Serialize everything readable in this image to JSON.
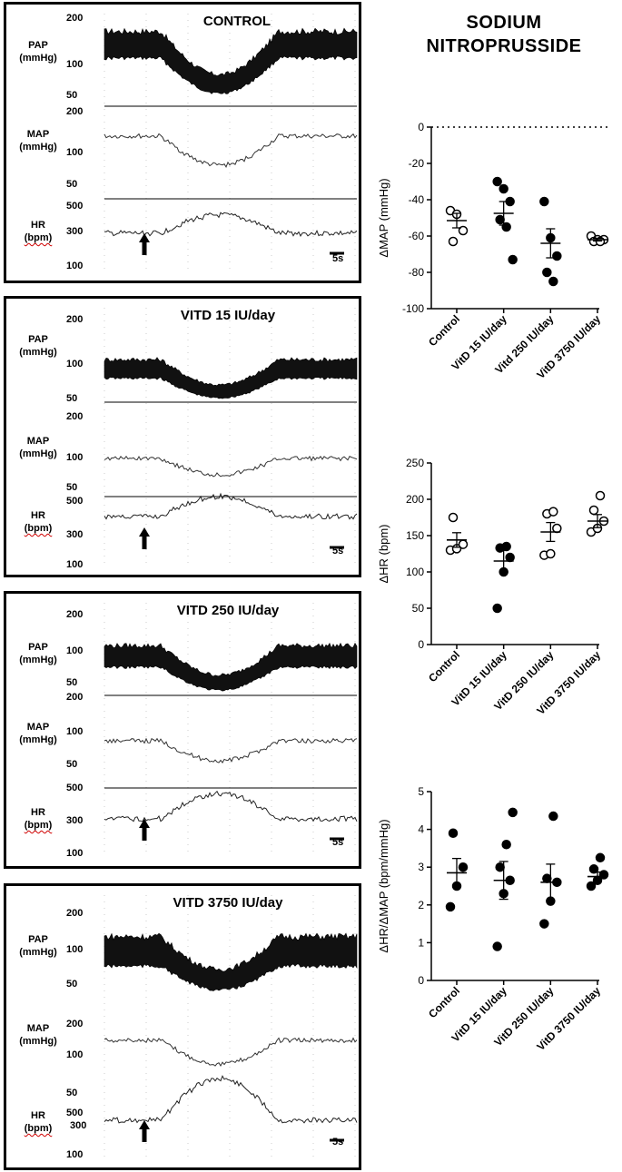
{
  "heading": {
    "line1": "SODIUM",
    "line2": "NITROPRUSSIDE"
  },
  "trace_labels": {
    "pap": "PAP",
    "pap_unit": "(mmHg)",
    "map": "MAP",
    "map_unit": "(mmHg)",
    "hr": "HR",
    "hr_unit": "(bpm)",
    "scale": "5s"
  },
  "panels": [
    {
      "title": "CONTROL",
      "pap_ticks": [
        "200",
        "100",
        "50"
      ],
      "map_ticks": [
        "200",
        "100",
        "50"
      ],
      "hr_ticks": [
        "500",
        "300",
        "100"
      ]
    },
    {
      "title": "VITD 15 IU/day",
      "pap_ticks": [
        "200",
        "100",
        "50"
      ],
      "map_ticks": [
        "200",
        "100",
        "50"
      ],
      "hr_ticks": [
        "500",
        "300",
        "100"
      ]
    },
    {
      "title": "VITD 250 IU/day",
      "pap_ticks": [
        "200",
        "100",
        "50"
      ],
      "map_ticks": [
        "200",
        "100",
        "50"
      ],
      "hr_ticks": [
        "500",
        "300",
        "100"
      ]
    },
    {
      "title": "VITD 3750 IU/day",
      "pap_ticks": [
        "200",
        "100",
        "50"
      ],
      "map_ticks": [
        "200",
        "100",
        "50"
      ],
      "hr_ticks": [
        "500",
        "300",
        "100"
      ]
    }
  ],
  "chart_data": [
    {
      "type": "scatter",
      "title": "",
      "ylabel": "ΔMAP (mmHg)",
      "xlabel": "",
      "ylim": [
        -100,
        0
      ],
      "yticks": [
        0,
        -20,
        -40,
        -60,
        -80,
        -100
      ],
      "zero_line": "dotted",
      "categories": [
        "Control",
        "VitD 15 IU/day",
        "Vitd 250 IU/day",
        "VitD 3750 IU/day"
      ],
      "markers": [
        "open",
        "filled",
        "filled",
        "open"
      ],
      "points": [
        [
          -46,
          -48,
          -57,
          -63
        ],
        [
          -30,
          -34,
          -41,
          -51,
          -55,
          -73
        ],
        [
          -41,
          -61,
          -71,
          -80,
          -85
        ],
        [
          -60,
          -62,
          -62,
          -63,
          -63
        ]
      ],
      "mean": [
        -51.5,
        -47.5,
        -64,
        -62
      ],
      "sem": [
        4,
        6.5,
        8,
        0.7
      ]
    },
    {
      "type": "scatter",
      "title": "",
      "ylabel": "ΔHR (bpm)",
      "xlabel": "",
      "ylim": [
        0,
        250
      ],
      "yticks": [
        0,
        50,
        100,
        150,
        200,
        250
      ],
      "categories": [
        "Control",
        "VitD 15 IU/day",
        "VitD 250 IU/day",
        "VitD 3750 IU/day"
      ],
      "markers": [
        "open",
        "filled",
        "open",
        "open"
      ],
      "points": [
        [
          130,
          132,
          138,
          175
        ],
        [
          50,
          100,
          120,
          133,
          135
        ],
        [
          123,
          125,
          160,
          180,
          183
        ],
        [
          155,
          160,
          170,
          185,
          205
        ]
      ],
      "mean": [
        144,
        115,
        155,
        170
      ],
      "sem": [
        10,
        15,
        13,
        9
      ]
    },
    {
      "type": "scatter",
      "title": "",
      "ylabel": "ΔHR/ΔMAP (bpm/mmHg)",
      "xlabel": "",
      "ylim": [
        0,
        5
      ],
      "yticks": [
        0,
        1,
        2,
        3,
        4,
        5
      ],
      "categories": [
        "Control",
        "VitD 15 IU/day",
        "VitD 250 IU/day",
        "VitD 3750 IU/day"
      ],
      "markers": [
        "filled",
        "filled",
        "filled",
        "filled"
      ],
      "points": [
        [
          1.95,
          2.5,
          3.0,
          3.9
        ],
        [
          0.9,
          2.3,
          2.65,
          3.0,
          3.6,
          4.45
        ],
        [
          1.5,
          2.1,
          2.6,
          2.7,
          4.35
        ],
        [
          2.5,
          2.65,
          2.8,
          2.95,
          3.25
        ]
      ],
      "mean": [
        2.85,
        2.65,
        2.6,
        2.75
      ],
      "sem": [
        0.38,
        0.5,
        0.48,
        0.12
      ]
    }
  ]
}
